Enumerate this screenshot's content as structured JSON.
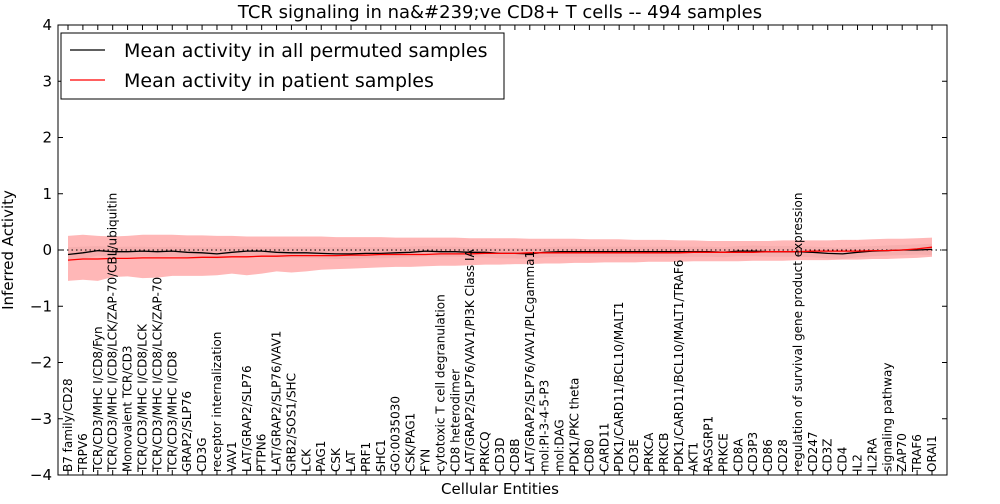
{
  "chart_data": {
    "type": "line",
    "title": "TCR signaling in na&#239;ve CD8+ T cells -- 494 samples",
    "xlabel": "Cellular Entities",
    "ylabel": "Inferred Activity",
    "ylim": [
      -4,
      4
    ],
    "yticks": [
      "4",
      "3",
      "2",
      "1",
      "0",
      "−1",
      "−2",
      "−3",
      "−4"
    ],
    "grid": false,
    "legend_position": "top-left",
    "colors": {
      "permuted": "#000000",
      "patient": "#ff0000",
      "band": "#ff9999",
      "gray_band": "#cccccc"
    },
    "categories": [
      "B7 family/CD28",
      "TRPV6",
      "TCR/CD3/MHC I/CD8/Fyn",
      "TCR/CD3/MHC I/CD8/LCK/ZAP-70/CBL/ubiquitin",
      "Monovalent TCR/CD3",
      "TCR/CD3/MHC I/CD8/LCK",
      "TCR/CD3/MHC I/CD8/LCK/ZAP-70",
      "TCR/CD3/MHC I/CD8",
      "GRAP2/SLP76",
      "CD3G",
      "receptor internalization",
      "VAV1",
      "LAT/GRAP2/SLP76",
      "PTPN6",
      "LAT/GRAP2/SLP76/VAV1",
      "GRB2/SOS1/SHC",
      "LCK",
      "PAG1",
      "CSK",
      "LAT",
      "PRF1",
      "SHC1",
      "GO:0035030",
      "CSK/PAG1",
      "FYN",
      "cytotoxic T cell degranulation",
      "CD8 heterodimer",
      "LAT/GRAP2/SLP76/VAV1/PI3K Class IA",
      "PRKCQ",
      "CD3D",
      "CD8B",
      "LAT/GRAP2/SLP76/VAV1/PLCgamma1",
      "mol:PI-3-4-5-P3",
      "mol:DAG",
      "PDK1/PKC theta",
      "CD80",
      "CARD11",
      "PDK1/CARD11/BCL10/MALT1",
      "CD3E",
      "PRKCA",
      "PRKCB",
      "PDK1/CARD11/BCL10/MALT1/TRAF6",
      "AKT1",
      "RASGRP1",
      "PRKCE",
      "CD8A",
      "CD3P3",
      "CD86",
      "CD28",
      "regulation of survival gene product expression",
      "CD247",
      "CD3Z",
      "CD4",
      "IL2",
      "IL2RA",
      "signaling pathway",
      "ZAP70",
      "TRAF6",
      "ORAI1"
    ],
    "series": [
      {
        "name": "Mean activity in all permuted samples",
        "color": "#000000",
        "values": [
          -0.08,
          -0.05,
          -0.01,
          -0.03,
          -0.03,
          -0.02,
          -0.03,
          -0.02,
          -0.04,
          -0.05,
          -0.07,
          -0.04,
          -0.02,
          -0.02,
          -0.04,
          -0.05,
          -0.05,
          -0.06,
          -0.07,
          -0.07,
          -0.06,
          -0.06,
          -0.05,
          -0.04,
          -0.02,
          -0.03,
          -0.03,
          -0.04,
          -0.04,
          -0.06,
          -0.06,
          -0.07,
          -0.04,
          -0.03,
          -0.03,
          -0.03,
          -0.03,
          -0.03,
          -0.03,
          -0.03,
          -0.03,
          -0.03,
          -0.03,
          -0.03,
          -0.04,
          -0.02,
          -0.02,
          -0.03,
          -0.03,
          -0.03,
          -0.04,
          -0.06,
          -0.07,
          -0.04,
          -0.02,
          -0.01,
          0.0,
          0.0,
          0.01
        ]
      },
      {
        "name": "Mean activity in patient samples",
        "color": "#ff0000",
        "values": [
          -0.18,
          -0.16,
          -0.16,
          -0.15,
          -0.15,
          -0.14,
          -0.14,
          -0.14,
          -0.14,
          -0.13,
          -0.13,
          -0.12,
          -0.12,
          -0.11,
          -0.11,
          -0.1,
          -0.1,
          -0.1,
          -0.1,
          -0.09,
          -0.09,
          -0.08,
          -0.08,
          -0.08,
          -0.08,
          -0.07,
          -0.07,
          -0.07,
          -0.06,
          -0.06,
          -0.06,
          -0.05,
          -0.05,
          -0.05,
          -0.05,
          -0.05,
          -0.05,
          -0.05,
          -0.05,
          -0.05,
          -0.05,
          -0.05,
          -0.04,
          -0.04,
          -0.04,
          -0.04,
          -0.04,
          -0.03,
          -0.03,
          -0.03,
          -0.02,
          -0.02,
          -0.02,
          -0.02,
          -0.01,
          -0.01,
          0.0,
          0.02,
          0.05
        ]
      }
    ],
    "patient_band": {
      "upper": [
        0.25,
        0.27,
        0.25,
        0.24,
        0.25,
        0.27,
        0.27,
        0.27,
        0.26,
        0.26,
        0.25,
        0.25,
        0.24,
        0.24,
        0.24,
        0.24,
        0.24,
        0.24,
        0.23,
        0.23,
        0.23,
        0.23,
        0.22,
        0.22,
        0.22,
        0.22,
        0.22,
        0.21,
        0.21,
        0.21,
        0.21,
        0.2,
        0.2,
        0.2,
        0.2,
        0.19,
        0.19,
        0.19,
        0.18,
        0.18,
        0.18,
        0.17,
        0.17,
        0.16,
        0.16,
        0.16,
        0.16,
        0.16,
        0.17,
        0.17,
        0.17,
        0.17,
        0.18,
        0.18,
        0.19,
        0.2,
        0.2,
        0.21,
        0.22
      ],
      "lower": [
        -0.55,
        -0.53,
        -0.55,
        -0.48,
        -0.47,
        -0.5,
        -0.49,
        -0.46,
        -0.46,
        -0.46,
        -0.45,
        -0.42,
        -0.45,
        -0.42,
        -0.38,
        -0.4,
        -0.38,
        -0.35,
        -0.34,
        -0.33,
        -0.32,
        -0.31,
        -0.3,
        -0.3,
        -0.29,
        -0.28,
        -0.28,
        -0.27,
        -0.26,
        -0.26,
        -0.25,
        -0.25,
        -0.24,
        -0.24,
        -0.23,
        -0.23,
        -0.22,
        -0.22,
        -0.22,
        -0.21,
        -0.21,
        -0.21,
        -0.2,
        -0.2,
        -0.2,
        -0.2,
        -0.19,
        -0.19,
        -0.19,
        -0.18,
        -0.18,
        -0.18,
        -0.17,
        -0.17,
        -0.16,
        -0.16,
        -0.15,
        -0.14,
        -0.12
      ]
    },
    "permuted_band": {
      "upper": [
        0.05,
        0.06,
        0.07,
        0.05,
        0.06,
        0.06,
        0.05,
        0.06,
        0.05,
        0.05,
        0.05,
        0.05,
        0.06,
        0.05,
        0.05,
        0.05,
        0.05,
        0.05,
        0.05,
        0.05,
        0.05,
        0.05,
        0.05,
        0.06,
        0.07,
        0.06,
        0.06,
        0.05,
        0.05,
        0.04,
        0.04,
        0.04,
        0.05,
        0.06,
        0.06,
        0.06,
        0.06,
        0.06,
        0.06,
        0.06,
        0.06,
        0.06,
        0.06,
        0.06,
        0.05,
        0.07,
        0.08,
        0.07,
        0.07,
        0.07,
        0.06,
        0.05,
        0.04,
        0.06,
        0.07,
        0.08,
        0.09,
        0.1,
        0.11
      ],
      "lower": [
        -0.2,
        -0.16,
        -0.1,
        -0.12,
        -0.12,
        -0.11,
        -0.12,
        -0.11,
        -0.13,
        -0.14,
        -0.16,
        -0.13,
        -0.11,
        -0.11,
        -0.13,
        -0.14,
        -0.14,
        -0.15,
        -0.16,
        -0.16,
        -0.15,
        -0.15,
        -0.14,
        -0.13,
        -0.11,
        -0.12,
        -0.12,
        -0.13,
        -0.13,
        -0.15,
        -0.15,
        -0.16,
        -0.13,
        -0.12,
        -0.12,
        -0.12,
        -0.12,
        -0.12,
        -0.12,
        -0.12,
        -0.12,
        -0.12,
        -0.12,
        -0.12,
        -0.13,
        -0.11,
        -0.11,
        -0.12,
        -0.12,
        -0.12,
        -0.13,
        -0.15,
        -0.16,
        -0.13,
        -0.11,
        -0.1,
        -0.09,
        -0.08,
        -0.09
      ]
    },
    "reference_line": {
      "y": 0,
      "style": "dotted"
    }
  }
}
